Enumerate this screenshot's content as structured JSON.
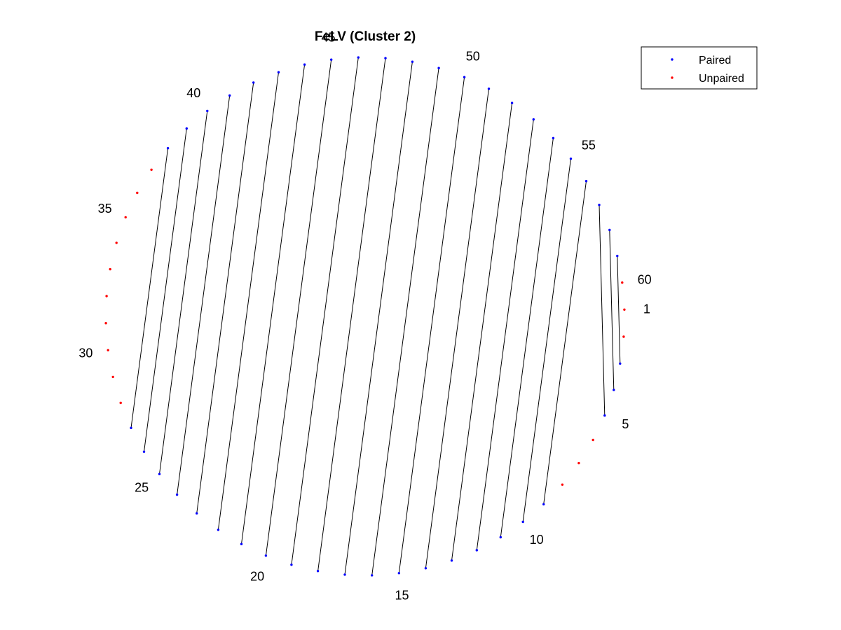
{
  "title": "FeLV (Cluster 2)",
  "legend": {
    "placement": "top-right",
    "items": [
      {
        "label": "Paired",
        "color": "#0000ff"
      },
      {
        "label": "Unpaired",
        "color": "#ff0000"
      }
    ]
  },
  "colors": {
    "paired": "#0000ff",
    "unpaired": "#ff0000",
    "chord": "#000000"
  },
  "chart_data": {
    "type": "circular-arc-diagram",
    "title": "FeLV (Cluster 2)",
    "n_positions": 60,
    "position_labels": [
      1,
      5,
      10,
      15,
      20,
      25,
      30,
      35,
      40,
      45,
      50,
      55,
      60
    ],
    "pairs": [
      [
        3,
        59
      ],
      [
        4,
        58
      ],
      [
        5,
        57
      ],
      [
        9,
        56
      ],
      [
        10,
        55
      ],
      [
        11,
        54
      ],
      [
        12,
        53
      ],
      [
        13,
        52
      ],
      [
        14,
        51
      ],
      [
        15,
        50
      ],
      [
        16,
        49
      ],
      [
        17,
        48
      ],
      [
        18,
        47
      ],
      [
        19,
        46
      ],
      [
        20,
        45
      ],
      [
        21,
        44
      ],
      [
        22,
        43
      ],
      [
        23,
        42
      ],
      [
        24,
        41
      ],
      [
        25,
        40
      ],
      [
        26,
        39
      ],
      [
        27,
        38
      ]
    ]
  }
}
